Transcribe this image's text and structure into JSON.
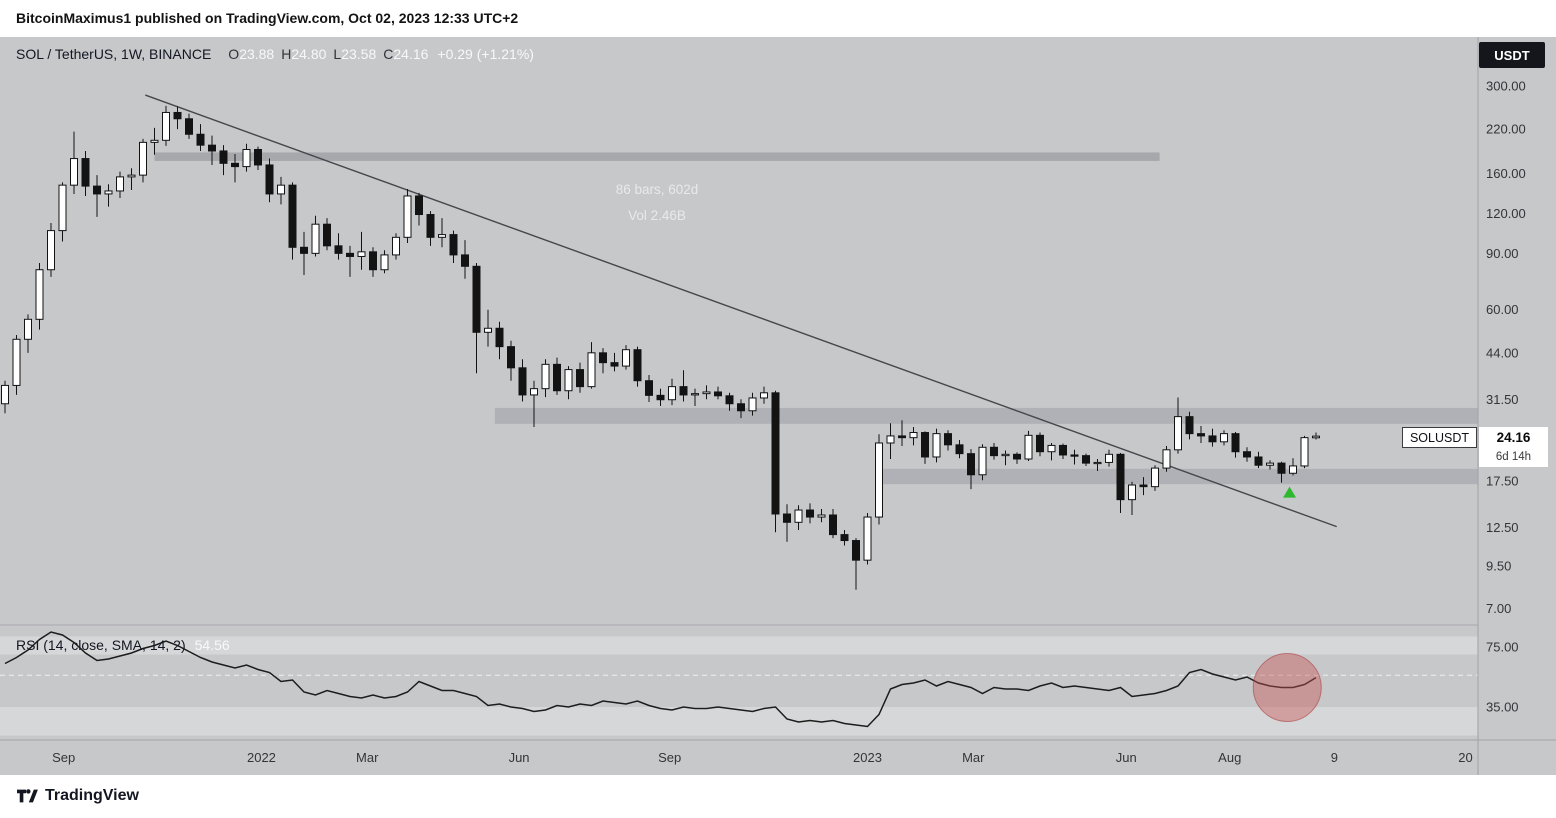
{
  "header": {
    "byline": "BitcoinMaximus1 published on TradingView.com, Oct 02, 2023 12:33 UTC+2"
  },
  "footer": {
    "brand": "TradingView"
  },
  "legend": {
    "symbol": "SOL / TetherUS, 1W, BINANCE",
    "o_label": "O",
    "o": "23.88",
    "h_label": "H",
    "h": "24.80",
    "l_label": "L",
    "l": "23.58",
    "c_label": "C",
    "c": "24.16",
    "change": "+0.29 (+1.21%)"
  },
  "axis_badge": "USDT",
  "price_flag": {
    "symbol": "SOLUSDT",
    "price": "24.16",
    "countdown": "6d 14h"
  },
  "rsi_legend": {
    "title": "RSI (14, close, SMA, 14, 2)",
    "value": "54.56"
  },
  "measurement_text": {
    "line1": "86 bars, 602d",
    "line2": "Vol 2.46B"
  },
  "colors": {
    "chart_bg": "#c7c8ca",
    "candle_up": "#ffffff",
    "candle_down": "#131313",
    "outline": "#131313",
    "zone_fill": "#abadb4",
    "measure_fill": "#a3a4a9",
    "trendline": "#46464c",
    "rsi_line": "#1c1c1c",
    "rsi_dashed": "#f0f0f0",
    "band_light": "rgba(255,255,255,0.28)",
    "marker_green": "#2eb82e",
    "highlight_red_fill": "rgba(199,82,82,0.42)",
    "highlight_red_stroke": "rgba(165,55,55,0.55)",
    "axis_text": "#34343a",
    "separator": "#a2a2a6"
  },
  "chart_data": {
    "type": "candlestick",
    "symbol": "SOLUSDT",
    "exchange": "BINANCE",
    "timeframe": "1W",
    "scale": "log",
    "ylim": [
      6.4,
      320
    ],
    "price_ticks": [
      {
        "label": "300.00",
        "value": 300
      },
      {
        "label": "220.00",
        "value": 220
      },
      {
        "label": "160.00",
        "value": 160
      },
      {
        "label": "120.00",
        "value": 120
      },
      {
        "label": "90.00",
        "value": 90
      },
      {
        "label": "60.00",
        "value": 60
      },
      {
        "label": "44.00",
        "value": 44
      },
      {
        "label": "31.50",
        "value": 31.5
      },
      {
        "label": "17.50",
        "value": 17.5
      },
      {
        "label": "12.50",
        "value": 12.5
      },
      {
        "label": "9.50",
        "value": 9.5
      },
      {
        "label": "7.00",
        "value": 7
      }
    ],
    "time_ticks": [
      {
        "label": "Sep",
        "index": 5.1
      },
      {
        "label": "2022",
        "index": 22.3
      },
      {
        "label": "Mar",
        "index": 31.5
      },
      {
        "label": "Jun",
        "index": 44.7
      },
      {
        "label": "Sep",
        "index": 57.8
      },
      {
        "label": "2023",
        "index": 75.0
      },
      {
        "label": "Mar",
        "index": 84.2
      },
      {
        "label": "Jun",
        "index": 97.5
      },
      {
        "label": "Aug",
        "index": 106.5
      },
      {
        "label": "9",
        "index": 115.6
      },
      {
        "label": "20",
        "index": 127.0
      }
    ],
    "candles": [
      [
        30.5,
        36,
        28.5,
        34.8
      ],
      [
        34.8,
        50,
        32.5,
        48.5
      ],
      [
        48.5,
        58,
        44,
        56
      ],
      [
        56,
        84,
        52,
        80
      ],
      [
        80,
        112,
        76,
        106
      ],
      [
        106,
        150,
        98,
        147
      ],
      [
        147,
        216,
        138,
        178
      ],
      [
        178,
        188,
        136,
        146
      ],
      [
        146,
        158,
        117,
        138
      ],
      [
        138,
        148,
        126,
        141
      ],
      [
        141,
        162,
        134,
        156
      ],
      [
        156,
        166,
        142,
        158
      ],
      [
        158,
        205,
        150,
        200
      ],
      [
        200,
        222,
        183,
        203
      ],
      [
        203,
        260,
        195,
        248
      ],
      [
        248,
        259,
        220,
        237
      ],
      [
        237,
        246,
        205,
        212
      ],
      [
        212,
        228,
        188,
        196
      ],
      [
        196,
        210,
        170,
        188
      ],
      [
        188,
        196,
        158,
        172
      ],
      [
        172,
        184,
        150,
        168
      ],
      [
        168,
        198,
        162,
        190
      ],
      [
        190,
        194,
        164,
        170
      ],
      [
        170,
        178,
        130,
        138
      ],
      [
        138,
        156,
        128,
        147
      ],
      [
        147,
        150,
        86,
        94
      ],
      [
        94,
        105,
        77,
        90
      ],
      [
        90,
        118,
        88,
        111
      ],
      [
        111,
        116,
        92,
        95
      ],
      [
        95,
        104,
        86,
        90
      ],
      [
        90,
        95,
        76,
        88
      ],
      [
        88,
        105,
        80,
        91
      ],
      [
        91,
        94,
        76,
        80
      ],
      [
        80,
        92,
        78,
        89
      ],
      [
        89,
        104,
        86,
        101
      ],
      [
        101,
        143,
        97,
        136
      ],
      [
        136,
        139,
        110,
        119
      ],
      [
        119,
        122,
        95,
        101
      ],
      [
        101,
        116,
        94,
        103
      ],
      [
        103,
        106,
        84,
        89
      ],
      [
        89,
        99,
        75,
        82
      ],
      [
        82,
        84,
        38,
        51
      ],
      [
        51,
        60,
        46,
        52.5
      ],
      [
        52.5,
        55,
        42,
        46
      ],
      [
        46,
        48,
        36,
        39.5
      ],
      [
        39.5,
        42,
        31,
        32.5
      ],
      [
        32.5,
        36,
        25.8,
        34
      ],
      [
        34,
        42,
        32,
        40.5
      ],
      [
        40.5,
        42.5,
        32.5,
        33.5
      ],
      [
        33.5,
        40,
        31.5,
        39
      ],
      [
        39,
        41,
        33,
        34.5
      ],
      [
        34.5,
        47.5,
        34,
        44
      ],
      [
        44,
        45.5,
        38,
        41
      ],
      [
        41,
        44,
        38.5,
        40
      ],
      [
        40,
        46.5,
        39,
        45
      ],
      [
        45,
        46,
        34.5,
        36
      ],
      [
        36,
        37.5,
        30.9,
        32.4
      ],
      [
        32.4,
        34,
        30,
        31.4
      ],
      [
        31.4,
        36.5,
        30.2,
        34.5
      ],
      [
        34.5,
        38.8,
        31,
        32.5
      ],
      [
        32.5,
        34,
        30,
        32.8
      ],
      [
        32.8,
        34.8,
        31.5,
        33.2
      ],
      [
        33.2,
        34.5,
        31.5,
        32.3
      ],
      [
        32.3,
        33,
        29,
        30.5
      ],
      [
        30.5,
        31.5,
        27.5,
        29
      ],
      [
        29,
        33,
        28,
        31.8
      ],
      [
        31.8,
        34.5,
        30.5,
        33
      ],
      [
        33,
        33.5,
        12.1,
        13.8
      ],
      [
        13.8,
        14.8,
        11.3,
        13
      ],
      [
        13,
        14.7,
        12.3,
        14.2
      ],
      [
        14.2,
        14.9,
        12.9,
        13.5
      ],
      [
        13.5,
        14.3,
        13,
        13.7
      ],
      [
        13.7,
        14.3,
        11.6,
        11.9
      ],
      [
        11.9,
        12.3,
        11,
        11.4
      ],
      [
        11.4,
        11.6,
        8,
        9.9
      ],
      [
        9.9,
        13.9,
        9.6,
        13.5
      ],
      [
        13.5,
        24.5,
        12.8,
        23
      ],
      [
        23,
        26.5,
        20.5,
        24.2
      ],
      [
        24.2,
        27.1,
        22.5,
        23.9
      ],
      [
        23.9,
        25.8,
        22.6,
        24.8
      ],
      [
        24.8,
        25,
        19.8,
        20.8
      ],
      [
        20.8,
        25.5,
        20,
        24.6
      ],
      [
        24.6,
        25.2,
        21.8,
        22.7
      ],
      [
        22.7,
        23.5,
        20.6,
        21.3
      ],
      [
        21.3,
        22,
        16.5,
        18.3
      ],
      [
        18.3,
        22.8,
        17.6,
        22.3
      ],
      [
        22.3,
        23,
        20.4,
        21
      ],
      [
        21,
        21.8,
        19.6,
        21.2
      ],
      [
        21.2,
        21.5,
        19.8,
        20.5
      ],
      [
        20.5,
        25.1,
        20.2,
        24.3
      ],
      [
        24.3,
        24.8,
        20.9,
        21.6
      ],
      [
        21.6,
        23,
        20.3,
        22.6
      ],
      [
        22.6,
        22.9,
        20.5,
        21.1
      ],
      [
        21.1,
        21.9,
        19.7,
        21
      ],
      [
        21,
        21.3,
        19.5,
        19.9
      ],
      [
        19.9,
        20.5,
        18.8,
        20
      ],
      [
        20,
        21.9,
        19.4,
        21.2
      ],
      [
        21.2,
        21.4,
        13.9,
        15.3
      ],
      [
        15.3,
        17.4,
        13.7,
        17
      ],
      [
        17,
        18,
        15.8,
        16.8
      ],
      [
        16.8,
        19.6,
        16.3,
        19.2
      ],
      [
        19.2,
        22.5,
        18.7,
        21.9
      ],
      [
        21.9,
        31.9,
        21.3,
        27.8
      ],
      [
        27.8,
        28.8,
        23.6,
        24.6
      ],
      [
        24.6,
        26,
        23,
        24.2
      ],
      [
        24.2,
        25.5,
        22.4,
        23.2
      ],
      [
        23.2,
        25.2,
        22.6,
        24.6
      ],
      [
        24.6,
        24.9,
        20.7,
        21.6
      ],
      [
        21.6,
        22.3,
        20.1,
        20.8
      ],
      [
        20.8,
        21.6,
        19.2,
        19.6
      ],
      [
        19.6,
        20.3,
        19,
        19.9
      ],
      [
        19.9,
        20.1,
        17.3,
        18.5
      ],
      [
        18.5,
        20.6,
        18.2,
        19.5
      ],
      [
        19.5,
        24.2,
        19.2,
        23.9
      ],
      [
        23.88,
        24.8,
        23.58,
        24.16
      ]
    ],
    "last_candle_ohlc": {
      "open": 23.88,
      "high": 24.8,
      "low": 23.58,
      "close": 24.16,
      "change": 0.29,
      "change_pct": 1.21
    },
    "trendline": {
      "from_index": 12.2,
      "from_price": 281,
      "to_index": 115.8,
      "to_price": 12.6
    },
    "measurement": {
      "from_index": 13.0,
      "to_index": 100.4,
      "price_top": 186,
      "price_bottom": 175,
      "bars": 86,
      "days": 602,
      "volume": "2.46B"
    },
    "zones": [
      {
        "name": "resistance-zone",
        "from_index": 42.6,
        "to_index": null,
        "price_top": 29.6,
        "price_bottom": 26.4
      },
      {
        "name": "support-zone",
        "from_index": 76.1,
        "to_index": null,
        "price_top": 19.1,
        "price_bottom": 17.1
      }
    ],
    "marker_up": {
      "index": 111.7,
      "price": 16.8
    },
    "rsi": {
      "period": 14,
      "source": "close",
      "ma_type": "SMA",
      "ma_length": 14,
      "ma_width": 2,
      "current": 54.56,
      "dashed_level": 56.2,
      "ticks": [
        {
          "label": "75.00",
          "value": 75
        },
        {
          "label": "35.00",
          "value": 35
        }
      ],
      "light_bands": [
        [
          82,
          70
        ],
        [
          35,
          16
        ]
      ],
      "highlight": {
        "index": 111.5,
        "value": 48,
        "radius": 34
      },
      "values": [
        64,
        68,
        73,
        80,
        85,
        83,
        78,
        71,
        66,
        67,
        69,
        71,
        74,
        76,
        79,
        76,
        72,
        68,
        65,
        63,
        61,
        63,
        60,
        58,
        52,
        53,
        45,
        43,
        46,
        44,
        42,
        41,
        43,
        41,
        42,
        45,
        52,
        49,
        46,
        46,
        44,
        42,
        36,
        37,
        35,
        34,
        32,
        33,
        36,
        35,
        37,
        36,
        39,
        38,
        37,
        39,
        36,
        34,
        33,
        35,
        34,
        34,
        35,
        34,
        33,
        32,
        34,
        35,
        27,
        25,
        26,
        25,
        26,
        24,
        23,
        22,
        30,
        47,
        50,
        51,
        53,
        49,
        52,
        50,
        48,
        44,
        48,
        47,
        47,
        46,
        49,
        51,
        48,
        49,
        48,
        47,
        46,
        48,
        42,
        43,
        44,
        46,
        49,
        58,
        60,
        57,
        55,
        53,
        55,
        51,
        49,
        48,
        48,
        50,
        54.56
      ]
    }
  }
}
